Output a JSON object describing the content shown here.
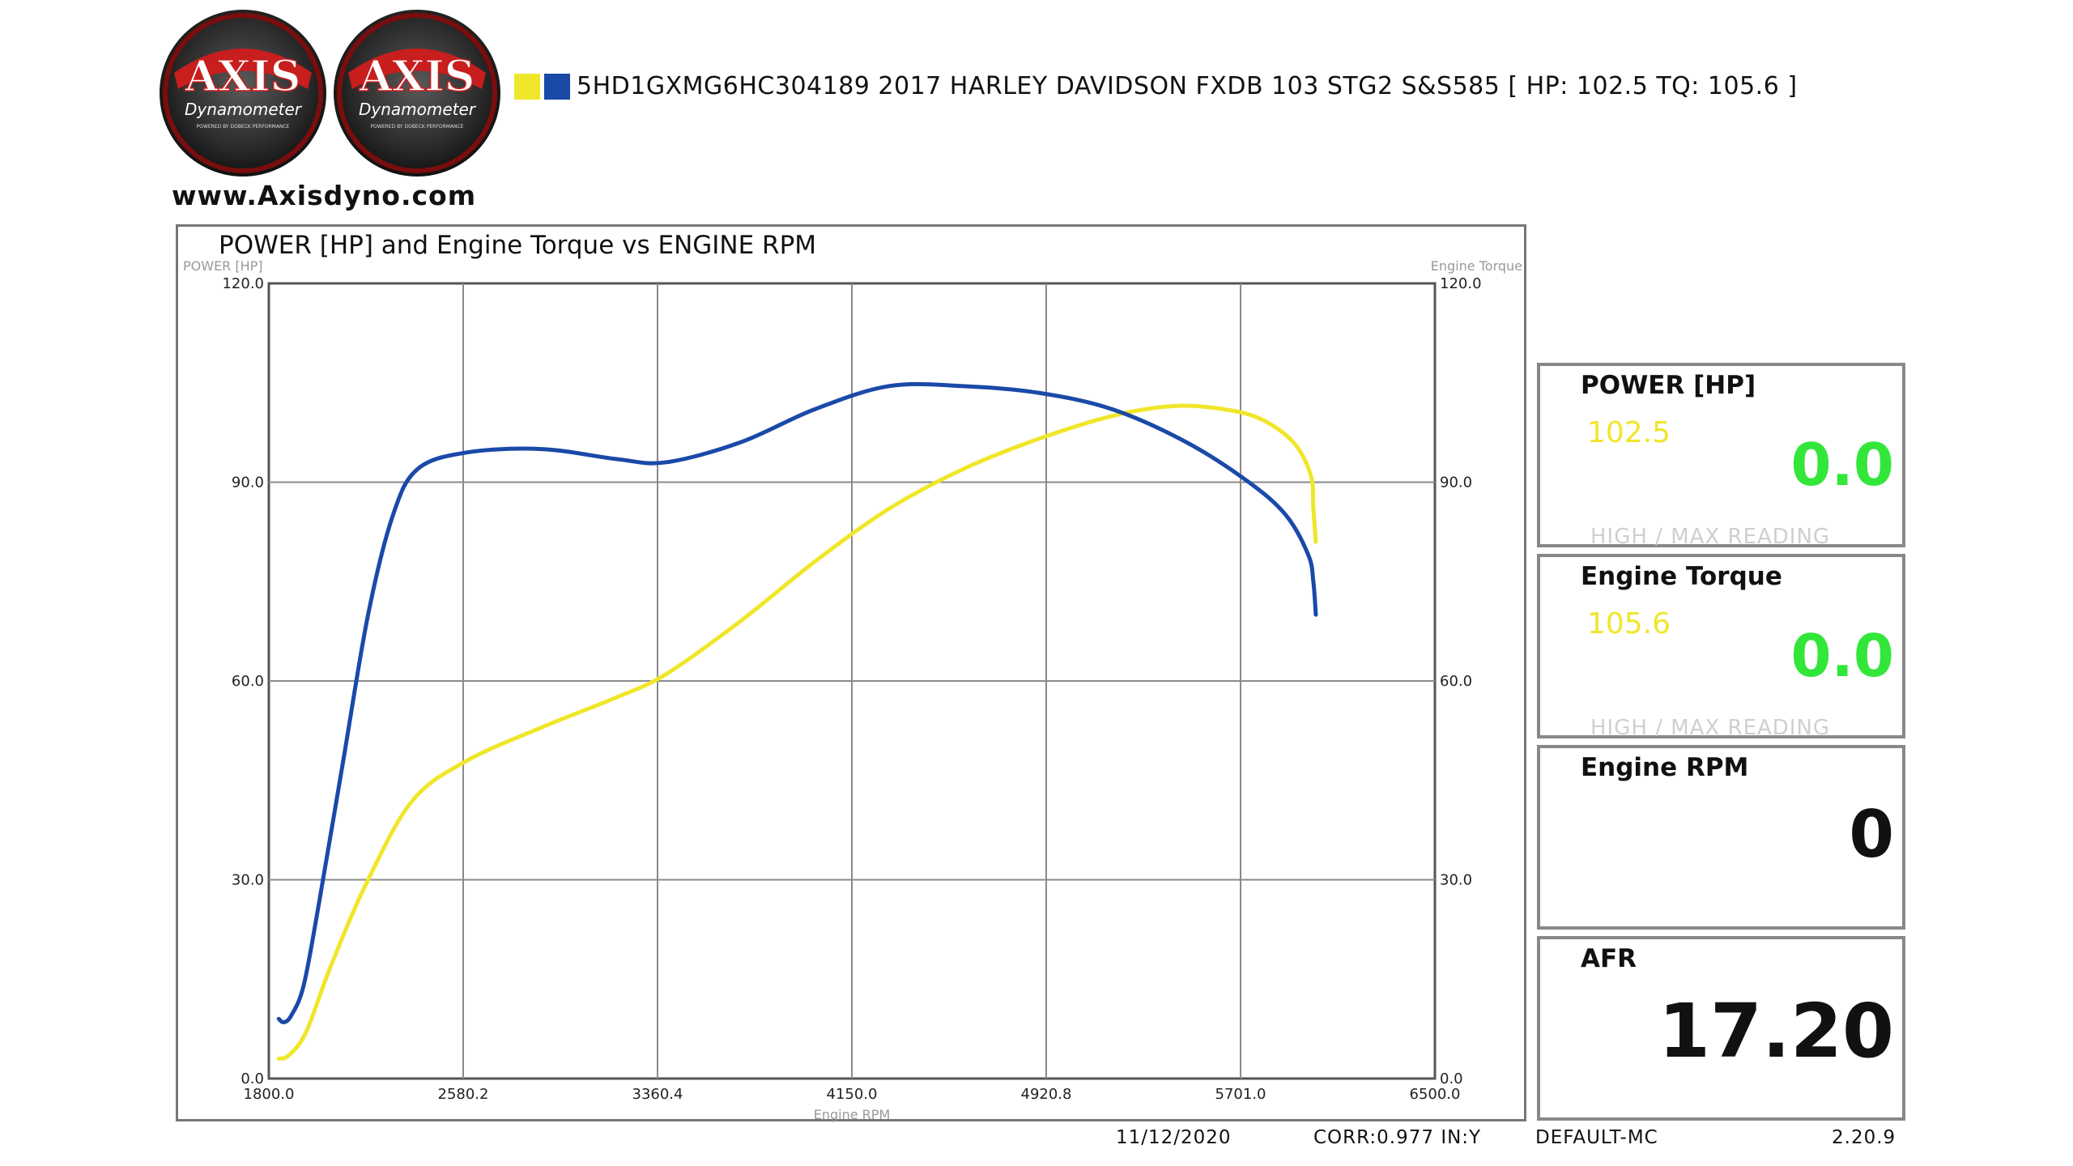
{
  "logo": {
    "brand": "AXIS",
    "sub": "Dynamometer",
    "tag": "POWERED BY DOBECK PERFORMANCE"
  },
  "website": "www.Axisdyno.com",
  "run_title": "5HD1GXMG6HC304189 2017 HARLEY DAVIDSON FXDB 103 STG2 S&S585 [ HP: 102.5 TQ: 105.6 ]",
  "chart_data": {
    "type": "line",
    "title": "POWER [HP] and Engine Torque vs ENGINE RPM",
    "xlabel": "Engine RPM",
    "ylabel_left": "POWER [HP]",
    "ylabel_right": "Engine Torque",
    "xlim": [
      1800.0,
      6500.0
    ],
    "ylim": [
      0.0,
      120.0
    ],
    "xticks": [
      "1800.0",
      "2580.2",
      "3360.4",
      "4150.0",
      "4920.8",
      "5701.0",
      "6500.0"
    ],
    "yticks": [
      "0.0",
      "30.0",
      "60.0",
      "90.0",
      "120.0"
    ],
    "grid": true,
    "series": [
      {
        "name": "POWER [HP]",
        "color": "#f0e62a",
        "x": [
          1840,
          1880,
          1950,
          2050,
          2200,
          2380,
          2600,
          2900,
          3200,
          3400,
          3700,
          4000,
          4300,
          4600,
          4900,
          5200,
          5450,
          5650,
          5800,
          5930,
          6000,
          6010,
          6020
        ],
        "y": [
          3,
          3.5,
          7,
          17,
          30,
          42,
          48,
          53,
          57.5,
          61,
          69,
          78,
          86,
          92,
          96.5,
          100,
          101.5,
          101,
          99.5,
          96,
          91,
          86,
          81
        ]
      },
      {
        "name": "Engine Torque",
        "color": "#1a49a8",
        "x": [
          1840,
          1860,
          1890,
          1940,
          2000,
          2100,
          2200,
          2300,
          2400,
          2600,
          2900,
          3200,
          3400,
          3700,
          4000,
          4300,
          4600,
          4900,
          5200,
          5500,
          5750,
          5900,
          5990,
          6010,
          6020
        ],
        "y": [
          9,
          8.5,
          9.5,
          14,
          26,
          48,
          70,
          85,
          92,
          94.5,
          95,
          93.5,
          93,
          96,
          101,
          104.5,
          104.5,
          103.5,
          101,
          96,
          90,
          85,
          79,
          75,
          70
        ]
      }
    ]
  },
  "panels": [
    {
      "title": "POWER [HP]",
      "max": "102.5",
      "value": "0.0",
      "foot": "HIGH / MAX READING",
      "value_color": "#33e63a"
    },
    {
      "title": "Engine Torque",
      "max": "105.6",
      "value": "0.0",
      "foot": "HIGH / MAX READING",
      "value_color": "#33e63a"
    },
    {
      "title": "Engine RPM",
      "value": "0"
    },
    {
      "title": "AFR",
      "value": "17.20"
    }
  ],
  "footer": {
    "date": "11/12/2020",
    "corr": "CORR:0.977 IN:Y",
    "profile": "DEFAULT-MC",
    "version": "2.20.9"
  }
}
